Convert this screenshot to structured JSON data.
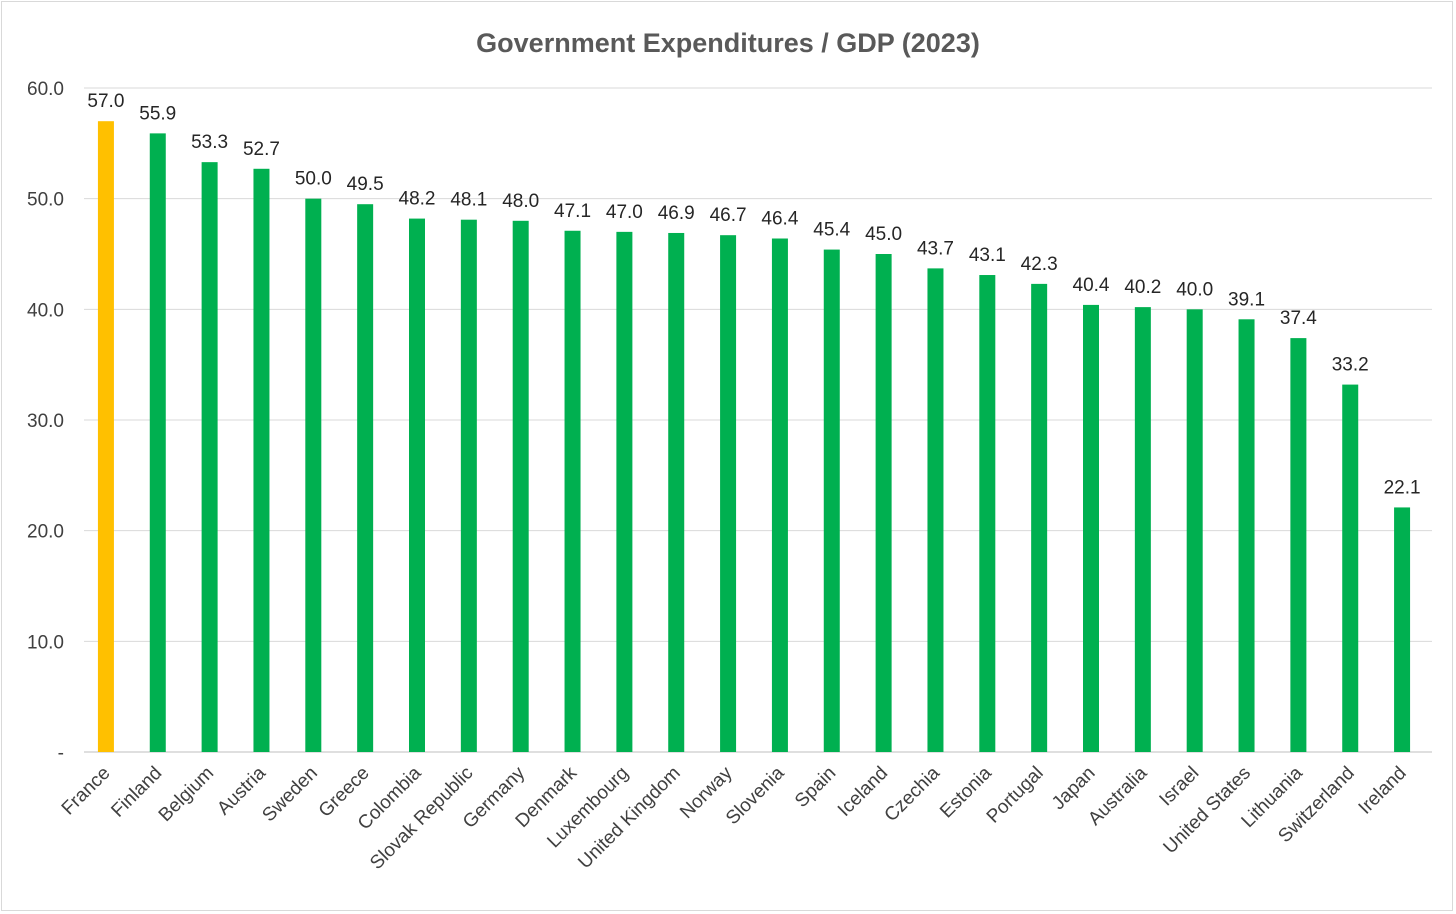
{
  "chart_data": {
    "type": "bar",
    "title": "Government Expenditures / GDP (2023)",
    "categories": [
      "France",
      "Finland",
      "Belgium",
      "Austria",
      "Sweden",
      "Greece",
      "Colombia",
      "Slovak Republic",
      "Germany",
      "Denmark",
      "Luxembourg",
      "United Kingdom",
      "Norway",
      "Slovenia",
      "Spain",
      "Iceland",
      "Czechia",
      "Estonia",
      "Portugal",
      "Japan",
      "Australia",
      "Israel",
      "United States",
      "Lithuania",
      "Switzerland",
      "Ireland"
    ],
    "values": [
      57.0,
      55.9,
      53.3,
      52.7,
      50.0,
      49.5,
      48.2,
      48.1,
      48.0,
      47.1,
      47.0,
      46.9,
      46.7,
      46.4,
      45.4,
      45.0,
      43.7,
      43.1,
      42.3,
      40.4,
      40.2,
      40.0,
      39.1,
      37.4,
      33.2,
      22.1
    ],
    "value_labels": [
      "57.0",
      "55.9",
      "53.3",
      "52.7",
      "50.0",
      "49.5",
      "48.2",
      "48.1",
      "48.0",
      "47.1",
      "47.0",
      "46.9",
      "46.7",
      "46.4",
      "45.4",
      "45.0",
      "43.7",
      "43.1",
      "42.3",
      "40.4",
      "40.2",
      "40.0",
      "39.1",
      "37.4",
      "33.2",
      "22.1"
    ],
    "ylim": [
      0,
      60
    ],
    "yticks": [
      0,
      10,
      20,
      30,
      40,
      50,
      60
    ],
    "ytick_labels": [
      "-",
      "10.0",
      "20.0",
      "30.0",
      "40.0",
      "50.0",
      "60.0"
    ],
    "grid": true,
    "legend": "none",
    "colors": {
      "default_bar": "#00b050",
      "highlight_bar": "#ffc000",
      "highlight_category": "France"
    }
  }
}
